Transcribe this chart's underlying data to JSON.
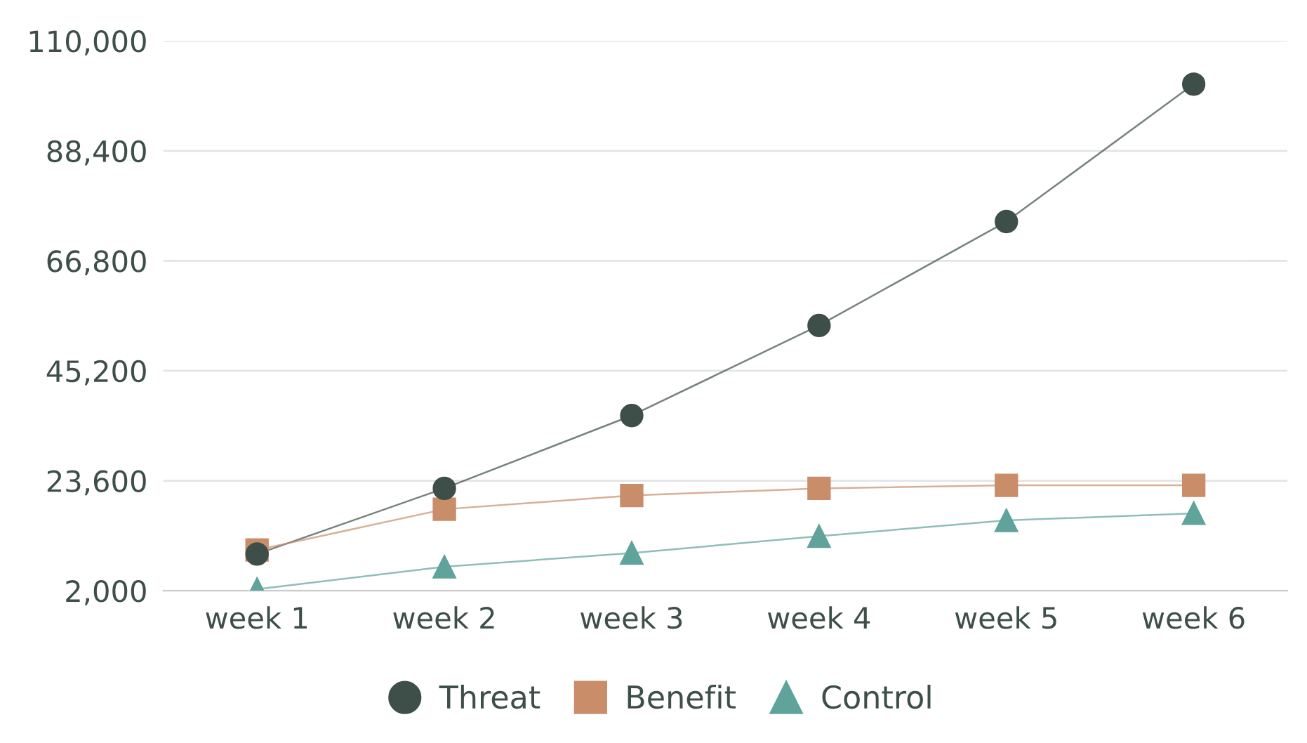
{
  "chart_data": {
    "type": "line",
    "categories": [
      "week 1",
      "week 2",
      "week 3",
      "week 4",
      "week 5",
      "week 6"
    ],
    "series": [
      {
        "name": "Threat",
        "color": "#3d4f48",
        "marker": "circle",
        "values": [
          9200,
          22100,
          36400,
          54100,
          74500,
          101500
        ]
      },
      {
        "name": "Benefit",
        "color": "#c98d6a",
        "marker": "square",
        "values": [
          10000,
          18000,
          20700,
          22100,
          22700,
          22700
        ]
      },
      {
        "name": "Control",
        "color": "#5fa39b",
        "marker": "triangle",
        "values": [
          2300,
          6700,
          9400,
          12700,
          15800,
          17200
        ]
      }
    ],
    "ylim": [
      2000,
      110000
    ],
    "yticks": [
      {
        "value": 2000,
        "label": "2,000"
      },
      {
        "value": 23600,
        "label": "23,600"
      },
      {
        "value": 45200,
        "label": "45,200"
      },
      {
        "value": 66800,
        "label": "66,800"
      },
      {
        "value": 88400,
        "label": "88,400"
      },
      {
        "value": 110000,
        "label": "110,000"
      }
    ],
    "grid": "y",
    "legend": "bottom"
  }
}
